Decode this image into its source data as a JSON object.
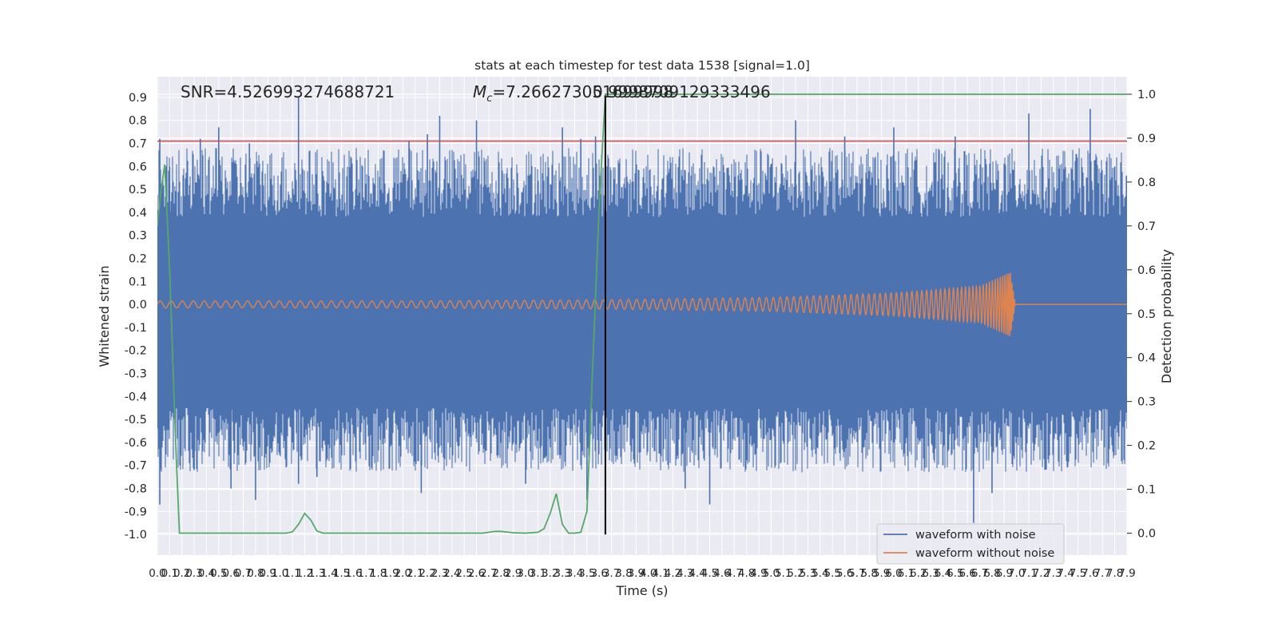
{
  "chart_data": {
    "type": "line",
    "title": "stats at each timestep for test data 1538 [signal=1.0]",
    "xlabel": "Time (s)",
    "ylabel_left": "Whitened strain",
    "ylabel_right": "Detection probability",
    "xlim": [
      0.0,
      7.9
    ],
    "ylim_left": [
      -1.09,
      0.99
    ],
    "ylim_right": [
      -0.05,
      1.04
    ],
    "grid": true,
    "x_ticks": [
      "0.0",
      "0.1",
      "0.2",
      "0.3",
      "0.4",
      "0.5",
      "0.6",
      "0.7",
      "0.8",
      "0.9",
      "1.0",
      "1.1",
      "1.2",
      "1.3",
      "1.4",
      "1.5",
      "1.6",
      "1.7",
      "1.8",
      "1.9",
      "2.0",
      "2.1",
      "2.2",
      "2.3",
      "2.4",
      "2.5",
      "2.6",
      "2.7",
      "2.8",
      "2.9",
      "3.0",
      "3.1",
      "3.2",
      "3.3",
      "3.4",
      "3.5",
      "3.6",
      "3.7",
      "3.8",
      "3.9",
      "4.0",
      "4.1",
      "4.2",
      "4.3",
      "4.4",
      "4.5",
      "4.6",
      "4.7",
      "4.8",
      "4.9",
      "5.0",
      "5.1",
      "5.2",
      "5.3",
      "5.4",
      "5.5",
      "5.6",
      "5.7",
      "5.8",
      "5.9",
      "6.0",
      "6.1",
      "6.2",
      "6.3",
      "6.4",
      "6.5",
      "6.6",
      "6.7",
      "6.8",
      "6.9",
      "7.0",
      "7.1",
      "7.2",
      "7.3",
      "7.4",
      "7.5",
      "7.6",
      "7.7",
      "7.8",
      "7.9"
    ],
    "y_ticks_left": [
      "0.9",
      "0.8",
      "0.7",
      "0.6",
      "0.5",
      "0.4",
      "0.3",
      "0.2",
      "0.1",
      "0.0",
      "-0.1",
      "-0.2",
      "-0.3",
      "-0.4",
      "-0.5",
      "-0.6",
      "-0.7",
      "-0.8",
      "-0.9",
      "-1.0"
    ],
    "y_ticks_right": [
      "1.0",
      "0.9",
      "0.8",
      "0.7",
      "0.6",
      "0.5",
      "0.4",
      "0.3",
      "0.2",
      "0.1",
      "0.0"
    ],
    "annotations": {
      "snr": "SNR=4.526993274688721",
      "mc_symbol": "M",
      "mc_sub": "c",
      "mc_value": "=7.266273051699998",
      "overlap_value": "0.9998709129333496"
    },
    "vertical_line_x": 3.65,
    "threshold_y": 0.71,
    "legend": {
      "placement": "lower-right",
      "entries": [
        "waveform with noise",
        "waveform without noise"
      ]
    },
    "series": [
      {
        "name": "waveform with noise",
        "axis": "left",
        "color": "#4c72b0",
        "band_upper_approx": 0.38,
        "band_lower_approx": -0.45,
        "peaks": [
          {
            "x": 0.02,
            "y": 0.72
          },
          {
            "x": 0.02,
            "y": -0.87
          },
          {
            "x": 0.1,
            "y": 0.6
          },
          {
            "x": 0.3,
            "y": -0.72
          },
          {
            "x": 0.35,
            "y": 0.72
          },
          {
            "x": 0.5,
            "y": 0.77
          },
          {
            "x": 0.6,
            "y": -0.8
          },
          {
            "x": 0.75,
            "y": 0.7
          },
          {
            "x": 0.8,
            "y": -0.85
          },
          {
            "x": 1.15,
            "y": 0.9
          },
          {
            "x": 1.15,
            "y": -0.78
          },
          {
            "x": 1.3,
            "y": -0.75
          },
          {
            "x": 2.05,
            "y": 0.71
          },
          {
            "x": 2.15,
            "y": -0.82
          },
          {
            "x": 2.2,
            "y": 0.74
          },
          {
            "x": 2.3,
            "y": 0.82
          },
          {
            "x": 2.6,
            "y": 0.8
          },
          {
            "x": 3.0,
            "y": -0.78
          },
          {
            "x": 3.3,
            "y": 0.77
          },
          {
            "x": 3.45,
            "y": 0.72
          },
          {
            "x": 3.5,
            "y": -0.85
          },
          {
            "x": 3.57,
            "y": 0.73
          },
          {
            "x": 4.3,
            "y": -0.8
          },
          {
            "x": 4.5,
            "y": -0.87
          },
          {
            "x": 5.2,
            "y": 0.8
          },
          {
            "x": 5.6,
            "y": 0.73
          },
          {
            "x": 6.0,
            "y": 0.77
          },
          {
            "x": 6.4,
            "y": -0.7
          },
          {
            "x": 6.5,
            "y": 0.73
          },
          {
            "x": 6.65,
            "y": -0.95
          },
          {
            "x": 6.8,
            "y": -0.82
          },
          {
            "x": 7.1,
            "y": 0.83
          },
          {
            "x": 7.6,
            "y": 0.85
          },
          {
            "x": 7.8,
            "y": 0.6
          }
        ]
      },
      {
        "name": "waveform without noise",
        "axis": "left",
        "color": "#dd8452",
        "amplitude_envelope": [
          {
            "x": 0.0,
            "y": 0.015
          },
          {
            "x": 2.0,
            "y": 0.015
          },
          {
            "x": 3.65,
            "y": 0.02
          },
          {
            "x": 5.0,
            "y": 0.03
          },
          {
            "x": 6.0,
            "y": 0.05
          },
          {
            "x": 6.7,
            "y": 0.08
          },
          {
            "x": 6.95,
            "y": 0.14
          },
          {
            "x": 6.99,
            "y": 0.0
          },
          {
            "x": 7.9,
            "y": 0.0
          }
        ],
        "merger_x": 6.99
      },
      {
        "name": "",
        "axis": "right",
        "color": "#55a868",
        "x": [
          0.0,
          0.03,
          0.06,
          0.1,
          0.15,
          0.18,
          0.2,
          0.25,
          0.3,
          1.0,
          1.05,
          1.1,
          1.15,
          1.2,
          1.25,
          1.3,
          1.35,
          1.4,
          1.45,
          1.5,
          2.65,
          2.7,
          2.75,
          2.8,
          2.9,
          3.0,
          3.1,
          3.15,
          3.2,
          3.25,
          3.3,
          3.35,
          3.4,
          3.45,
          3.5,
          3.55,
          3.6,
          3.65,
          3.7,
          4.0,
          7.9
        ],
        "y": [
          0.7,
          0.78,
          0.84,
          0.6,
          0.2,
          0.0,
          0.0,
          0.0,
          0.0,
          0.0,
          0.0,
          0.003,
          0.02,
          0.045,
          0.03,
          0.005,
          0.0,
          0.0,
          0.0,
          0.0,
          0.0,
          0.002,
          0.004,
          0.004,
          0.001,
          0.0,
          0.002,
          0.01,
          0.045,
          0.09,
          0.02,
          0.0,
          0.0,
          0.002,
          0.05,
          0.4,
          0.75,
          1.0,
          1.0,
          1.0,
          1.0
        ]
      },
      {
        "name": "",
        "axis": "left",
        "color": "#c44e52",
        "x": [
          0.0,
          7.9
        ],
        "y": [
          0.71,
          0.71
        ]
      }
    ]
  }
}
